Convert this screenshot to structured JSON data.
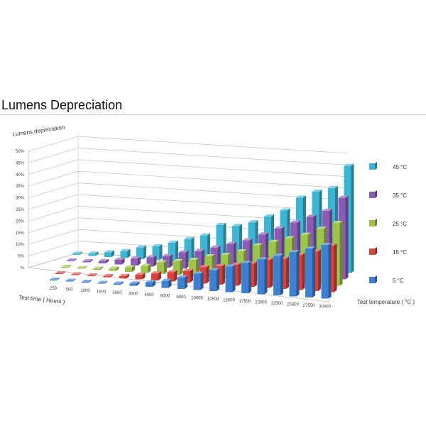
{
  "page": {
    "title": "Lumens Depreciation"
  },
  "chart_data": {
    "type": "bar",
    "subtype": "3d-clustered-depth",
    "title": "Lumens Depreciation",
    "ylabel": "Lumens depreciation",
    "xlabel": "Test time ( Hours )",
    "zlabel": "Test temperature ( °C )",
    "ylim": [
      0,
      50
    ],
    "yticks": [
      "%",
      "5%",
      "10%",
      "15%",
      "20%",
      "25%",
      "30%",
      "35%",
      "40%",
      "45%",
      "50%"
    ],
    "categories": [
      "250",
      "500",
      "1000",
      "1500",
      "2000",
      "3000",
      "4000",
      "6000",
      "8000",
      "10000",
      "12500",
      "15000",
      "17500",
      "20000",
      "22500",
      "25000",
      "27500",
      "30000"
    ],
    "series": [
      {
        "name": "5 °C",
        "color": "#3d7fd1",
        "values": [
          0.1,
          0.1,
          0.2,
          0.3,
          0.5,
          1,
          2,
          3,
          5,
          7,
          9,
          11,
          13,
          15,
          17,
          19,
          21,
          23
        ]
      },
      {
        "name": "15 °C",
        "color": "#d9413a",
        "values": [
          0.1,
          0.2,
          0.3,
          0.5,
          1,
          2,
          3,
          4,
          5,
          7,
          8,
          9,
          10,
          12,
          13,
          15,
          17,
          20
        ]
      },
      {
        "name": "25 °C",
        "color": "#9bc449",
        "values": [
          0.2,
          0.3,
          0.5,
          1,
          2,
          3,
          5,
          6,
          7,
          9,
          10,
          12,
          15,
          17,
          19,
          21,
          24,
          27
        ]
      },
      {
        "name": "35 °C",
        "color": "#8b5bb5",
        "values": [
          0.3,
          0.5,
          1,
          2,
          3,
          4,
          5,
          7,
          8,
          10,
          12,
          14,
          17,
          20,
          23,
          26,
          29,
          35
        ]
      },
      {
        "name": "45 °C",
        "color": "#3bb5d4",
        "values": [
          0.5,
          1,
          2,
          3,
          5,
          6,
          8,
          10,
          12,
          17,
          17,
          19,
          22,
          25,
          31,
          34,
          36,
          46
        ]
      }
    ],
    "grid": true,
    "legend": "right"
  }
}
